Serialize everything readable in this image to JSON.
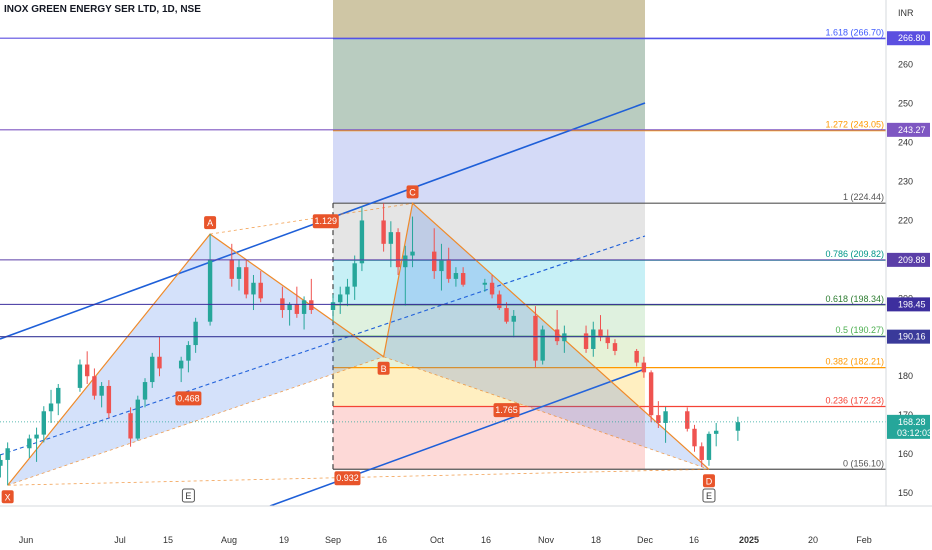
{
  "chart_data": {
    "type": "candlestick",
    "title": "INOX GREEN ENERGY SER LTD, 1D, NSE",
    "currency": "INR",
    "y_axis_ticks": [
      150,
      160,
      170,
      180,
      190,
      200,
      210,
      220,
      230,
      240,
      250,
      260
    ],
    "x_axis_ticks": [
      "Jun",
      "Jul",
      "15",
      "Aug",
      "19",
      "Sep",
      "16",
      "Oct",
      "16",
      "Nov",
      "18",
      "Dec",
      "16",
      "2025",
      "20",
      "Feb"
    ],
    "last_price": {
      "value": "168.28",
      "countdown": "03:12:03"
    },
    "level_badges": [
      {
        "label": "266.80",
        "value": 266.8,
        "color": "#5b4fe0"
      },
      {
        "label": "243.27",
        "value": 243.27,
        "color": "#7e57c2"
      },
      {
        "label": "209.88",
        "value": 209.88,
        "color": "#5b3fa8"
      },
      {
        "label": "198.45",
        "value": 198.45,
        "color": "#3d2f9e"
      },
      {
        "label": "190.16",
        "value": 190.16,
        "color": "#3a3a9a"
      }
    ],
    "fib_levels": [
      {
        "label": "1.618 (266.70)",
        "value": 266.7,
        "color": "#3d5afe",
        "fill": "rgba(70,120,90,0.38)"
      },
      {
        "label": "1.272 (243.05)",
        "value": 243.05,
        "color": "#ff9800",
        "fill": "rgba(120,140,230,0.32)"
      },
      {
        "label": "1 (224.44)",
        "value": 224.44,
        "color": "#555555",
        "fill": "rgba(180,180,180,0.35)"
      },
      {
        "label": "0.786 (209.82)",
        "value": 209.82,
        "color": "#009688",
        "fill": "rgba(0,188,212,0.22)"
      },
      {
        "label": "0.618 (198.34)",
        "value": 198.34,
        "color": "#2e7d32",
        "fill": "rgba(76,175,80,0.18)"
      },
      {
        "label": "0.5 (190.27)",
        "value": 190.27,
        "color": "#4caf50",
        "fill": "rgba(139,195,74,0.22)"
      },
      {
        "label": "0.382 (182.21)",
        "value": 182.21,
        "color": "#ff9800",
        "fill": "rgba(255,193,7,0.25)"
      },
      {
        "label": "0.236 (172.23)",
        "value": 172.23,
        "color": "#f44336",
        "fill": "rgba(244,67,54,0.20)"
      },
      {
        "label": "0 (156.10)",
        "value": 156.1,
        "color": "#555555"
      }
    ],
    "harmonic_points": [
      {
        "label": "X",
        "date": "2024-07-19",
        "price": 152
      },
      {
        "label": "A",
        "date": "2024-08-16",
        "price": 216.5
      },
      {
        "label": "B",
        "date": "2024-09-09",
        "price": 185
      },
      {
        "label": "C",
        "date": "2024-09-13",
        "price": 224.4
      },
      {
        "label": "D",
        "date": "2024-10-24",
        "price": 156.1
      }
    ],
    "ratio_labels": [
      {
        "label": "0.468",
        "date": "2024-08-13",
        "price": 174.3
      },
      {
        "label": "1.129",
        "date": "2024-09-01",
        "price": 219.8
      },
      {
        "label": "1.765",
        "date": "2024-09-26",
        "price": 171.3
      },
      {
        "label": "0.932",
        "date": "2024-09-04",
        "price": 153.8
      }
    ],
    "event_markers": [
      {
        "label": "E",
        "date": "2024-08-13"
      },
      {
        "label": "E",
        "date": "2024-10-24"
      }
    ],
    "candles": [
      [
        "2024-06-17",
        146,
        150.8,
        145,
        149.5
      ],
      [
        "2024-06-18",
        150,
        155.6,
        144,
        147
      ],
      [
        "2024-06-19",
        148,
        151.5,
        145.5,
        150.5
      ],
      [
        "2024-06-20",
        151,
        160.1,
        150,
        159
      ],
      [
        "2024-06-21",
        159,
        170.1,
        158,
        169
      ],
      [
        "2024-06-24",
        169,
        172.7,
        167,
        168
      ],
      [
        "2024-06-25",
        168,
        174,
        165,
        172
      ],
      [
        "2024-06-26",
        172,
        183.7,
        170,
        182
      ],
      [
        "2024-06-27",
        182,
        187.5,
        176,
        179
      ],
      [
        "2024-06-28",
        179,
        183.1,
        174,
        176
      ],
      [
        "2024-07-01",
        176,
        178.3,
        170.5,
        174
      ],
      [
        "2024-07-02",
        174,
        176,
        166,
        167
      ],
      [
        "2024-07-03",
        167,
        174.8,
        165,
        172
      ],
      [
        "2024-07-04",
        172,
        180.4,
        171,
        179
      ],
      [
        "2024-07-05",
        179,
        182.3,
        174.5,
        176
      ],
      [
        "2024-07-08",
        176,
        178.2,
        170,
        171.5
      ],
      [
        "2024-07-09",
        171.5,
        174,
        168,
        172.5
      ],
      [
        "2024-07-10",
        172.5,
        173.5,
        166,
        167
      ],
      [
        "2024-07-11",
        167,
        171,
        166,
        170
      ],
      [
        "2024-07-12",
        170,
        172,
        164,
        165
      ],
      [
        "2024-07-15",
        165,
        169,
        163,
        168
      ],
      [
        "2024-07-16",
        168,
        170.1,
        162,
        163
      ],
      [
        "2024-07-17",
        163,
        165.3,
        155.6,
        157
      ],
      [
        "2024-07-18",
        157,
        160,
        154,
        158.5
      ],
      [
        "2024-07-19",
        158.5,
        163,
        152,
        161.5
      ],
      [
        "2024-07-22",
        161.5,
        165,
        159,
        164
      ],
      [
        "2024-07-23",
        164,
        166.8,
        158,
        165
      ],
      [
        "2024-07-24",
        165,
        172.3,
        163,
        171
      ],
      [
        "2024-07-25",
        171,
        176.5,
        168,
        173
      ],
      [
        "2024-07-26",
        173,
        178,
        170,
        177
      ],
      [
        "2024-07-29",
        177,
        184.3,
        176,
        183
      ],
      [
        "2024-07-30",
        183,
        186.4,
        178,
        180
      ],
      [
        "2024-07-31",
        180,
        182,
        174,
        175
      ],
      [
        "2024-08-01",
        175,
        178.5,
        172,
        177.5
      ],
      [
        "2024-08-02",
        177.5,
        179,
        169.2,
        170.5
      ],
      [
        "2024-08-05",
        170.5,
        172,
        161.9,
        164
      ],
      [
        "2024-08-06",
        164,
        175,
        163.5,
        174
      ],
      [
        "2024-08-07",
        174,
        179.5,
        172,
        178.5
      ],
      [
        "2024-08-08",
        178.5,
        186,
        177,
        185
      ],
      [
        "2024-08-09",
        185,
        190.1,
        180,
        182
      ],
      [
        "2024-08-12",
        182,
        185,
        178.5,
        184
      ],
      [
        "2024-08-13",
        184,
        189,
        181,
        188
      ],
      [
        "2024-08-14",
        188,
        195,
        186,
        194
      ],
      [
        "2024-08-16",
        194,
        216.5,
        193,
        210
      ],
      [
        "2024-08-19",
        210,
        214,
        203,
        205
      ],
      [
        "2024-08-20",
        205,
        210,
        202,
        208
      ],
      [
        "2024-08-21",
        208,
        210,
        200,
        201
      ],
      [
        "2024-08-22",
        201,
        206,
        197,
        204
      ],
      [
        "2024-08-23",
        204,
        207,
        199,
        200
      ],
      [
        "2024-08-26",
        200,
        203,
        195,
        197
      ],
      [
        "2024-08-27",
        197,
        199,
        193,
        198.5
      ],
      [
        "2024-08-28",
        198.5,
        203,
        195,
        196
      ],
      [
        "2024-08-29",
        196,
        200.5,
        192,
        199.5
      ],
      [
        "2024-08-30",
        199.5,
        205,
        196,
        197
      ],
      [
        "2024-09-02",
        197,
        201,
        194,
        199
      ],
      [
        "2024-09-03",
        199,
        203,
        196,
        201
      ],
      [
        "2024-09-04",
        201,
        205,
        198,
        203
      ],
      [
        "2024-09-05",
        203,
        211,
        199.6,
        209
      ],
      [
        "2024-09-06",
        209,
        223.6,
        207,
        220
      ],
      [
        "2024-09-09",
        220,
        224.4,
        212,
        214
      ],
      [
        "2024-09-10",
        214,
        219.8,
        208,
        217
      ],
      [
        "2024-09-11",
        217,
        218,
        206,
        208
      ],
      [
        "2024-09-12",
        208,
        213.5,
        198.1,
        211
      ],
      [
        "2024-09-13",
        211,
        221,
        208,
        212
      ],
      [
        "2024-09-16",
        212,
        218,
        205,
        207
      ],
      [
        "2024-09-17",
        207,
        214,
        202,
        210
      ],
      [
        "2024-09-18",
        210,
        213,
        204,
        205
      ],
      [
        "2024-09-19",
        205,
        208,
        203,
        206.5
      ],
      [
        "2024-09-20",
        206.5,
        208,
        203,
        203.5
      ],
      [
        "2024-09-23",
        203.5,
        205,
        201.7,
        204
      ],
      [
        "2024-09-24",
        204,
        206,
        200,
        201
      ],
      [
        "2024-09-25",
        201,
        202,
        197,
        197.5
      ],
      [
        "2024-09-26",
        197.5,
        199,
        193.5,
        194
      ],
      [
        "2024-09-27",
        194,
        197,
        190,
        195.5
      ],
      [
        "2024-09-30",
        195.5,
        198,
        182.2,
        184
      ],
      [
        "2024-10-01",
        184,
        193,
        183,
        192
      ],
      [
        "2024-10-03",
        192,
        197,
        188,
        189
      ],
      [
        "2024-10-04",
        189,
        193,
        186,
        191
      ],
      [
        "2024-10-07",
        191,
        193,
        186,
        187
      ],
      [
        "2024-10-08",
        187,
        194,
        185,
        192
      ],
      [
        "2024-10-09",
        192,
        195.7,
        189,
        190
      ],
      [
        "2024-10-10",
        190,
        192,
        187,
        188.5
      ],
      [
        "2024-10-11",
        188.5,
        189.5,
        185.4,
        186.5
      ],
      [
        "2024-10-14",
        186.5,
        187,
        182.5,
        183.5
      ],
      [
        "2024-10-15",
        183.5,
        185,
        179.6,
        181
      ],
      [
        "2024-10-16",
        181,
        181.5,
        168.2,
        170
      ],
      [
        "2024-10-17",
        170,
        173.6,
        166.7,
        168
      ],
      [
        "2024-10-18",
        168,
        172.1,
        162.9,
        171
      ],
      [
        "2024-10-21",
        171,
        172,
        165.8,
        166.5
      ],
      [
        "2024-10-22",
        166.5,
        167.5,
        160.6,
        162
      ],
      [
        "2024-10-23",
        162,
        163,
        156.7,
        158.5
      ],
      [
        "2024-10-24",
        158.5,
        165.8,
        157,
        165.2
      ],
      [
        "2024-10-25",
        165.2,
        168,
        162,
        166
      ],
      [
        "2024-10-28",
        166,
        169.6,
        163.4,
        168.2
      ]
    ]
  }
}
